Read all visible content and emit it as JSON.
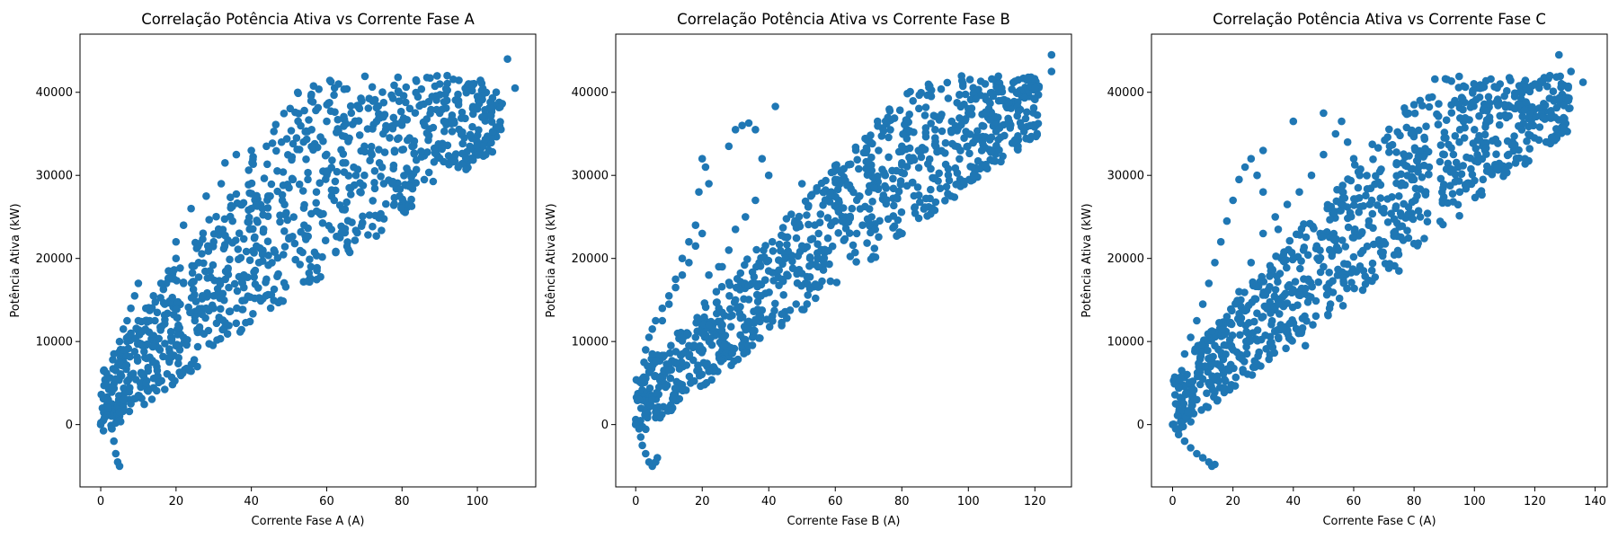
{
  "chart_data": [
    {
      "type": "scatter",
      "title": "Correlação Potência Ativa vs Corrente Fase A",
      "xlabel": "Corrente Fase A (A)",
      "ylabel": "Potência Ativa (kW)",
      "xlim": [
        -5.5,
        115.5
      ],
      "ylim": [
        -7500,
        47000
      ],
      "xticks": [
        0,
        20,
        40,
        60,
        80,
        100
      ],
      "yticks": [
        0,
        10000,
        20000,
        30000,
        40000
      ],
      "color": "#1f77b4",
      "grid": false,
      "series": [
        {
          "x": [
            0,
            1,
            2,
            3,
            3.5,
            4,
            4.5,
            5,
            5,
            6,
            3,
            4,
            3.5,
            5,
            6,
            7,
            8,
            9,
            10,
            2,
            4,
            5,
            6,
            7,
            8,
            10,
            12,
            14,
            16,
            18,
            20,
            5,
            8,
            10,
            12,
            15,
            18,
            20,
            22,
            25,
            28,
            30,
            34,
            38,
            42,
            46,
            50,
            54,
            58,
            62,
            66,
            70,
            74,
            78,
            82,
            86,
            90,
            95,
            100,
            105,
            110,
            4,
            5,
            6,
            7,
            9,
            11,
            13,
            15,
            17,
            19,
            22,
            26,
            30,
            35,
            40,
            45,
            50,
            55,
            60,
            65,
            70,
            75,
            80,
            85,
            88,
            90,
            92,
            95,
            100,
            108,
            20,
            22,
            24,
            28,
            32,
            33,
            36,
            40,
            44,
            48,
            52,
            56,
            60,
            44,
            38,
            30,
            26,
            23,
            21,
            25,
            27,
            29
          ],
          "y": [
            0,
            800,
            2000,
            -500,
            -2000,
            -3500,
            -4500,
            -5000,
            1000,
            2500,
            4500,
            6500,
            8500,
            10000,
            11500,
            12500,
            14000,
            15500,
            17000,
            3000,
            5500,
            7500,
            9000,
            10000,
            11000,
            12500,
            14000,
            15500,
            17000,
            18500,
            20000,
            1500,
            2500,
            3500,
            5000,
            6500,
            8000,
            9500,
            10500,
            12500,
            14000,
            15500,
            16500,
            18000,
            19500,
            21000,
            22500,
            24000,
            25500,
            27000,
            28500,
            30000,
            31500,
            33000,
            34500,
            36000,
            37500,
            38500,
            39500,
            40000,
            40500,
            200,
            500,
            3000,
            5200,
            8800,
            11200,
            12500,
            13500,
            14500,
            15300,
            17000,
            19500,
            22000,
            24500,
            26000,
            27500,
            28500,
            29500,
            30500,
            31500,
            33500,
            35000,
            36500,
            38500,
            39500,
            41000,
            42000,
            39000,
            38000,
            44000,
            22000,
            24000,
            26000,
            27500,
            29000,
            31500,
            32500,
            33000,
            33500,
            34000,
            34500,
            35500,
            36500,
            17500,
            16500,
            14000,
            11500,
            10200,
            9000,
            13000,
            15500,
            18500
          ]
        }
      ]
    },
    {
      "type": "scatter",
      "title": "Correlação Potência Ativa vs Corrente Fase B",
      "xlabel": "Corrente Fase B (A)",
      "ylabel": "Potência Ativa (kW)",
      "xlim": [
        -6,
        131
      ],
      "ylim": [
        -7500,
        47000
      ],
      "xticks": [
        0,
        20,
        40,
        60,
        80,
        100,
        120
      ],
      "yticks": [
        0,
        10000,
        20000,
        30000,
        40000
      ],
      "color": "#1f77b4",
      "grid": false,
      "series": [
        {
          "x": [
            0,
            1,
            1.5,
            2,
            3,
            4,
            5,
            6,
            6.5,
            1,
            2,
            2.5,
            3,
            4,
            5,
            6,
            8,
            10,
            12,
            14,
            16,
            18,
            19,
            20,
            21,
            22,
            20,
            3,
            5,
            7,
            10,
            14,
            18,
            22,
            26,
            30,
            35,
            40,
            45,
            50,
            55,
            60,
            65,
            70,
            75,
            80,
            85,
            90,
            95,
            100,
            105,
            110,
            115,
            118,
            120,
            125,
            125,
            6,
            9,
            12,
            16,
            20,
            25,
            28,
            30,
            32,
            34,
            36,
            38,
            40,
            42,
            25,
            28,
            30,
            33,
            36,
            50,
            60,
            70,
            80,
            90,
            100,
            110,
            5,
            8,
            10,
            12,
            14,
            16,
            18,
            22,
            26,
            34
          ],
          "y": [
            0,
            -500,
            -1500,
            -2500,
            -3500,
            -4500,
            -5000,
            -4500,
            -4000,
            3000,
            5500,
            7500,
            9000,
            10500,
            11500,
            12500,
            14000,
            15500,
            17500,
            20000,
            22000,
            24000,
            28000,
            32000,
            31000,
            29000,
            23000,
            1500,
            3000,
            4500,
            6500,
            8500,
            10500,
            12000,
            13500,
            15000,
            17000,
            18500,
            20000,
            21500,
            23000,
            24500,
            26000,
            28000,
            30000,
            31500,
            33000,
            34500,
            36500,
            38000,
            39500,
            40500,
            41500,
            41800,
            40500,
            44500,
            42500,
            1500,
            4500,
            7500,
            9500,
            11000,
            14000,
            33500,
            35500,
            36000,
            36300,
            35500,
            32000,
            30000,
            38300,
            19000,
            21000,
            23500,
            25000,
            27000,
            29000,
            29500,
            31500,
            33500,
            35500,
            37500,
            39000,
            8500,
            12500,
            14500,
            16500,
            18000,
            19500,
            21500,
            18000,
            19000,
            9500
          ]
        }
      ]
    },
    {
      "type": "scatter",
      "title": "Correlação Potência Ativa vs Corrente Fase C",
      "xlabel": "Corrente Fase C (A)",
      "ylabel": "Potência Ativa (kW)",
      "xlim": [
        -7,
        144
      ],
      "ylim": [
        -7500,
        47000
      ],
      "xticks": [
        0,
        20,
        40,
        60,
        80,
        100,
        120,
        140
      ],
      "yticks": [
        0,
        10000,
        20000,
        30000,
        40000
      ],
      "color": "#1f77b4",
      "grid": false,
      "series": [
        {
          "x": [
            0,
            1,
            2,
            4,
            6,
            8,
            10,
            12,
            13,
            14,
            1,
            2,
            3,
            4,
            6,
            8,
            10,
            12,
            14,
            16,
            18,
            20,
            22,
            24,
            26,
            28,
            30,
            5,
            8,
            12,
            16,
            20,
            25,
            30,
            35,
            40,
            45,
            50,
            55,
            60,
            65,
            70,
            75,
            80,
            85,
            90,
            95,
            100,
            105,
            110,
            115,
            120,
            125,
            128,
            132,
            136,
            10,
            14,
            18,
            22,
            26,
            30,
            34,
            38,
            42,
            46,
            50,
            54,
            56,
            58,
            62,
            66,
            70,
            75,
            30,
            40,
            50,
            60,
            70,
            90,
            110,
            44,
            52,
            40,
            35,
            80
          ],
          "y": [
            0,
            -500,
            -1200,
            -2000,
            -2800,
            -3500,
            -4000,
            -4500,
            -5000,
            -4800,
            2500,
            4500,
            6500,
            8500,
            10500,
            12500,
            14500,
            17000,
            19500,
            22000,
            24500,
            27000,
            29500,
            31000,
            32000,
            30000,
            28000,
            1500,
            3000,
            5000,
            7000,
            9000,
            11000,
            13000,
            14500,
            16000,
            17500,
            19000,
            21000,
            22500,
            24000,
            25500,
            27500,
            29500,
            31000,
            32500,
            34000,
            35500,
            37000,
            38500,
            40000,
            41000,
            42000,
            44500,
            42500,
            41200,
            5500,
            9500,
            13000,
            16000,
            19500,
            23000,
            25000,
            26500,
            28000,
            30000,
            32500,
            35000,
            36500,
            34000,
            30000,
            27000,
            22000,
            18500,
            33000,
            36500,
            37500,
            32000,
            26000,
            34500,
            38500,
            9500,
            14000,
            20000,
            23500,
            38500
          ]
        }
      ]
    }
  ]
}
